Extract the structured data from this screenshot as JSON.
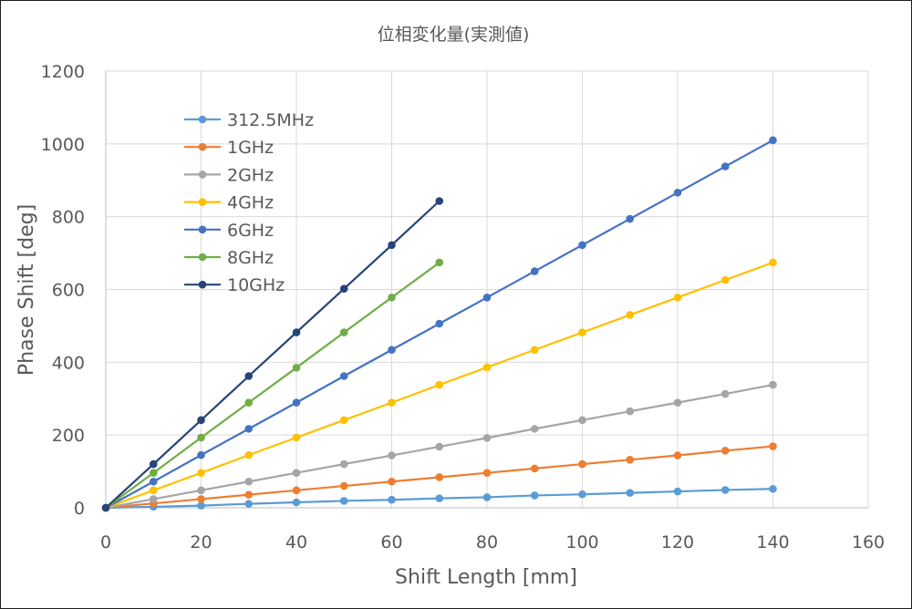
{
  "chart_data": {
    "type": "line",
    "title": "位相変化量(実測値)",
    "xlabel": "Shift Length [mm]",
    "ylabel": "Phase Shift [deg]",
    "xlim": [
      0,
      160
    ],
    "ylim": [
      0,
      1200
    ],
    "xticks": [
      0,
      20,
      40,
      60,
      80,
      100,
      120,
      140,
      160
    ],
    "yticks": [
      0,
      200,
      400,
      600,
      800,
      1000,
      1200
    ],
    "grid": true,
    "legend_position": "top-left",
    "series": [
      {
        "name": "312.5MHz",
        "color": "#5b9bd5",
        "points": [
          [
            0,
            0
          ],
          [
            10,
            3
          ],
          [
            20,
            6
          ],
          [
            30,
            11
          ],
          [
            40,
            15
          ],
          [
            50,
            19
          ],
          [
            60,
            22
          ],
          [
            70,
            26
          ],
          [
            80,
            29
          ],
          [
            90,
            34
          ],
          [
            100,
            37
          ],
          [
            110,
            41
          ],
          [
            120,
            45
          ],
          [
            130,
            49
          ],
          [
            140,
            52
          ]
        ]
      },
      {
        "name": "1GHz",
        "color": "#ed7d31",
        "points": [
          [
            0,
            0
          ],
          [
            10,
            12
          ],
          [
            20,
            24
          ],
          [
            30,
            36
          ],
          [
            40,
            48
          ],
          [
            50,
            60
          ],
          [
            60,
            72
          ],
          [
            70,
            84
          ],
          [
            80,
            96
          ],
          [
            90,
            108
          ],
          [
            100,
            120
          ],
          [
            110,
            132
          ],
          [
            120,
            144
          ],
          [
            130,
            157
          ],
          [
            140,
            169
          ]
        ]
      },
      {
        "name": "2GHz",
        "color": "#a5a5a5",
        "points": [
          [
            0,
            0
          ],
          [
            10,
            24
          ],
          [
            20,
            48
          ],
          [
            30,
            72
          ],
          [
            40,
            96
          ],
          [
            50,
            120
          ],
          [
            60,
            144
          ],
          [
            70,
            168
          ],
          [
            80,
            192
          ],
          [
            90,
            217
          ],
          [
            100,
            241
          ],
          [
            110,
            265
          ],
          [
            120,
            289
          ],
          [
            130,
            313
          ],
          [
            140,
            338
          ]
        ]
      },
      {
        "name": "4GHz",
        "color": "#ffc000",
        "points": [
          [
            0,
            0
          ],
          [
            10,
            48
          ],
          [
            20,
            96
          ],
          [
            30,
            145
          ],
          [
            40,
            193
          ],
          [
            50,
            241
          ],
          [
            60,
            289
          ],
          [
            70,
            338
          ],
          [
            80,
            386
          ],
          [
            90,
            434
          ],
          [
            100,
            482
          ],
          [
            110,
            530
          ],
          [
            120,
            578
          ],
          [
            130,
            626
          ],
          [
            140,
            674
          ]
        ]
      },
      {
        "name": "6GHz",
        "color": "#4472c4",
        "points": [
          [
            0,
            0
          ],
          [
            10,
            72
          ],
          [
            20,
            145
          ],
          [
            30,
            217
          ],
          [
            40,
            289
          ],
          [
            50,
            362
          ],
          [
            60,
            434
          ],
          [
            70,
            506
          ],
          [
            80,
            578
          ],
          [
            90,
            650
          ],
          [
            100,
            722
          ],
          [
            110,
            794
          ],
          [
            120,
            866
          ],
          [
            130,
            938
          ],
          [
            140,
            1010
          ]
        ]
      },
      {
        "name": "8GHz",
        "color": "#70ad47",
        "points": [
          [
            0,
            0
          ],
          [
            10,
            96
          ],
          [
            20,
            193
          ],
          [
            30,
            289
          ],
          [
            40,
            385
          ],
          [
            50,
            482
          ],
          [
            60,
            578
          ],
          [
            70,
            674
          ]
        ]
      },
      {
        "name": "10GHz",
        "color": "#264478",
        "points": [
          [
            0,
            0
          ],
          [
            10,
            120
          ],
          [
            20,
            241
          ],
          [
            30,
            362
          ],
          [
            40,
            482
          ],
          [
            50,
            602
          ],
          [
            60,
            722
          ],
          [
            70,
            843
          ]
        ]
      }
    ]
  }
}
